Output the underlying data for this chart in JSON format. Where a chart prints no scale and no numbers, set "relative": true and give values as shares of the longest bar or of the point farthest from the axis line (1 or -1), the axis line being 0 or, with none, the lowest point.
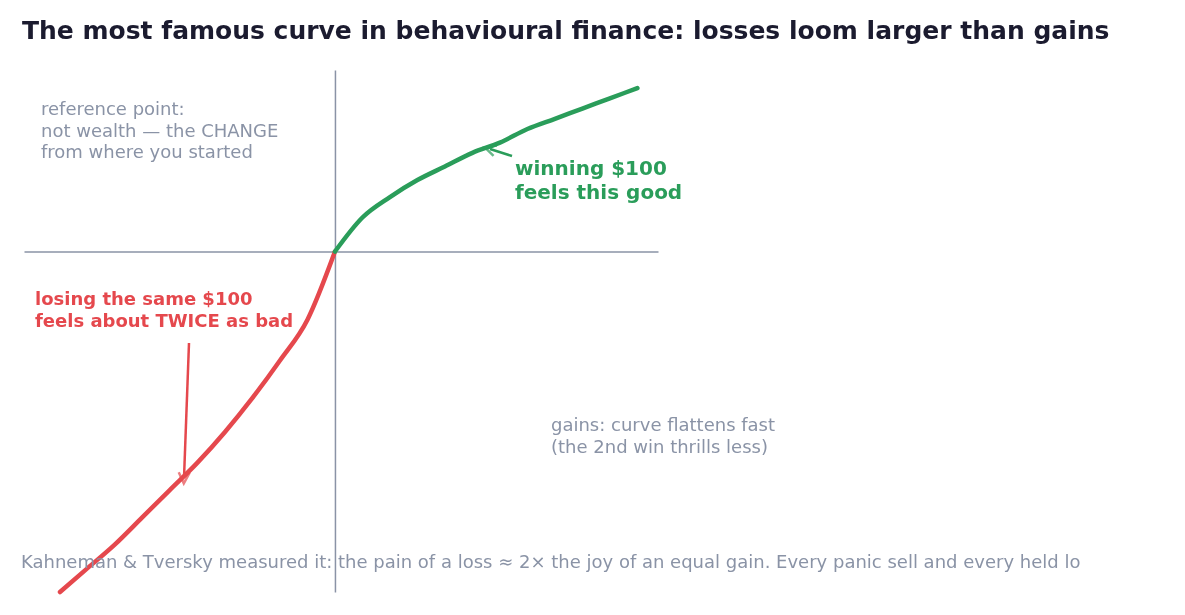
{
  "chart_data": {
    "type": "line",
    "title": "The most famous curve in behavioural finance: losses loom larger than gains",
    "relative": true,
    "tick_labels": false,
    "grid": false,
    "legend": false,
    "marker": "none",
    "line_style": "solid",
    "categories": [
      null,
      null,
      null,
      null,
      null,
      null,
      null,
      null,
      null,
      null,
      null,
      null,
      null,
      null,
      null,
      null,
      null,
      null,
      null,
      null,
      null,
      null
    ],
    "series": [
      {
        "color": "#e5484d",
        "values": [
          -1,
          -0.93,
          -0.86,
          -0.78,
          -0.7,
          -0.62,
          -0.53,
          -0.43,
          -0.32,
          -0.2,
          0,
          null,
          null,
          null,
          null,
          null,
          null,
          null,
          null,
          null,
          null,
          null
        ]
      },
      {
        "color": "#2a9d5a",
        "values": [
          null,
          null,
          null,
          null,
          null,
          null,
          null,
          null,
          null,
          null,
          0,
          0.1,
          0.16,
          0.21,
          0.25,
          0.29,
          0.32,
          0.36,
          0.39,
          0.42,
          0.45,
          0.48
        ]
      }
    ],
    "annotations": [
      "reference point:\nnot wealth — the CHANGE\nfrom where you started",
      "winning $100\nfeels this good",
      "losing the same $100\nfeels about TWICE as bad",
      "gains: curve flattens fast\n(the 2nd win thrills less)",
      "Kahneman & Tversky measured it: the pain of a loss ≈ 2× the joy of an equal gain. Every panic sell and every held lo"
    ]
  }
}
